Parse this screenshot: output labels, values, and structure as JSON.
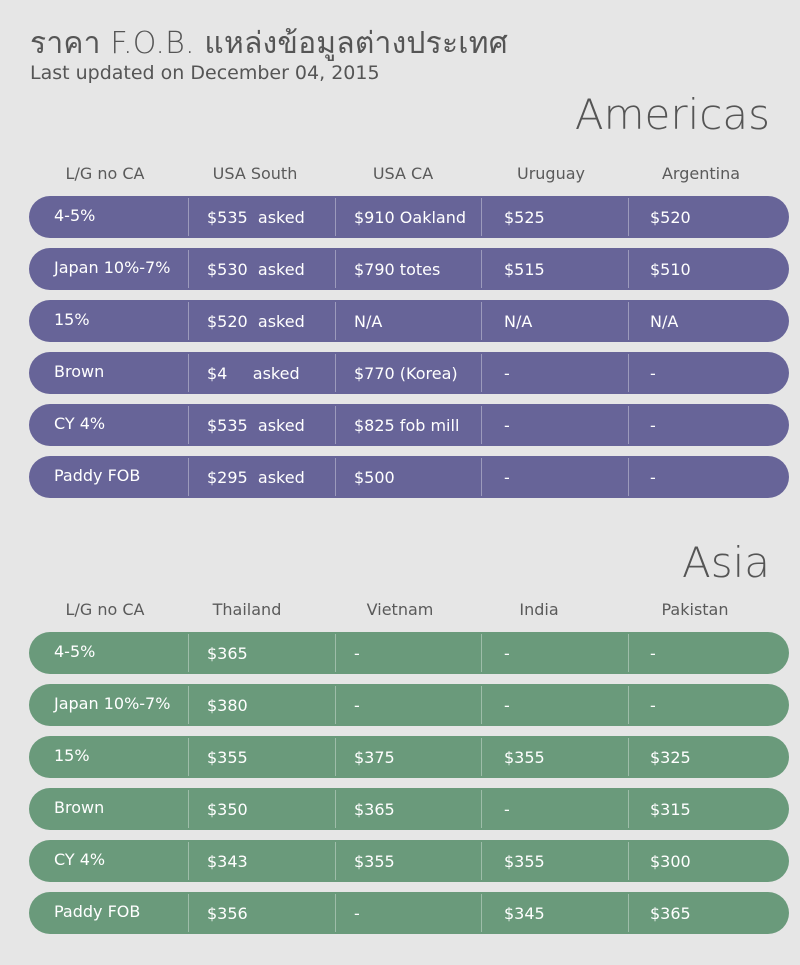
{
  "title": "ราคา F.O.B. แหล่งข้อมูลต่างประเทศ",
  "subtitle": "Last updated on December 04, 2015",
  "americas": {
    "region": "Americas",
    "headers": [
      "L/G no CA",
      "USA South",
      "USA CA",
      "Uruguay",
      "Argentina"
    ],
    "rows": [
      [
        "4-5%",
        "$535  asked",
        "$910 Oakland",
        "$525",
        "$520"
      ],
      [
        "Japan 10%-7%",
        "$530  asked",
        "$790 totes",
        "$515",
        "$510"
      ],
      [
        "15%",
        "$520  asked",
        "N/A",
        "N/A",
        "N/A"
      ],
      [
        "Brown",
        "$4     asked",
        "$770 (Korea)",
        "-",
        "-"
      ],
      [
        "CY 4%",
        "$535  asked",
        "$825 fob mill",
        "-",
        "-"
      ],
      [
        "Paddy FOB",
        "$295  asked",
        "$500",
        "-",
        "-"
      ]
    ]
  },
  "asia": {
    "region": "Asia",
    "headers": [
      "L/G no CA",
      "Thailand",
      "Vietnam",
      "India",
      "Pakistan"
    ],
    "rows": [
      [
        "4-5%",
        "$365",
        "-",
        "-",
        "-"
      ],
      [
        "Japan 10%-7%",
        "$380",
        "-",
        "-",
        "-"
      ],
      [
        "15%",
        "$355",
        "$375",
        "$355",
        "$325"
      ],
      [
        "Brown",
        "$350",
        "$365",
        "-",
        "$315"
      ],
      [
        "CY 4%",
        "$343",
        "$355",
        "$355",
        "$300"
      ],
      [
        "Paddy FOB",
        "$356",
        "-",
        "$345",
        "$365"
      ]
    ]
  },
  "colors": {
    "americas_row": "#676498",
    "asia_row": "#6a9a7b",
    "background": "#e6e6e6"
  },
  "chart_data": [
    {
      "type": "table",
      "title": "Americas",
      "columns": [
        "L/G no CA",
        "USA South",
        "USA CA",
        "Uruguay",
        "Argentina"
      ],
      "rows": [
        [
          "4-5%",
          "$535 asked",
          "$910 Oakland",
          "$525",
          "$520"
        ],
        [
          "Japan 10%-7%",
          "$530 asked",
          "$790 totes",
          "$515",
          "$510"
        ],
        [
          "15%",
          "$520 asked",
          "N/A",
          "N/A",
          "N/A"
        ],
        [
          "Brown",
          "$4 asked",
          "$770 (Korea)",
          "-",
          "-"
        ],
        [
          "CY 4%",
          "$535 asked",
          "$825 fob mill",
          "-",
          "-"
        ],
        [
          "Paddy FOB",
          "$295 asked",
          "$500",
          "-",
          "-"
        ]
      ]
    },
    {
      "type": "table",
      "title": "Asia",
      "columns": [
        "L/G no CA",
        "Thailand",
        "Vietnam",
        "India",
        "Pakistan"
      ],
      "rows": [
        [
          "4-5%",
          "$365",
          "-",
          "-",
          "-"
        ],
        [
          "Japan 10%-7%",
          "$380",
          "-",
          "-",
          "-"
        ],
        [
          "15%",
          "$355",
          "$375",
          "$355",
          "$325"
        ],
        [
          "Brown",
          "$350",
          "$365",
          "-",
          "$315"
        ],
        [
          "CY 4%",
          "$343",
          "$355",
          "$355",
          "$300"
        ],
        [
          "Paddy FOB",
          "$356",
          "-",
          "$345",
          "$365"
        ]
      ]
    }
  ]
}
